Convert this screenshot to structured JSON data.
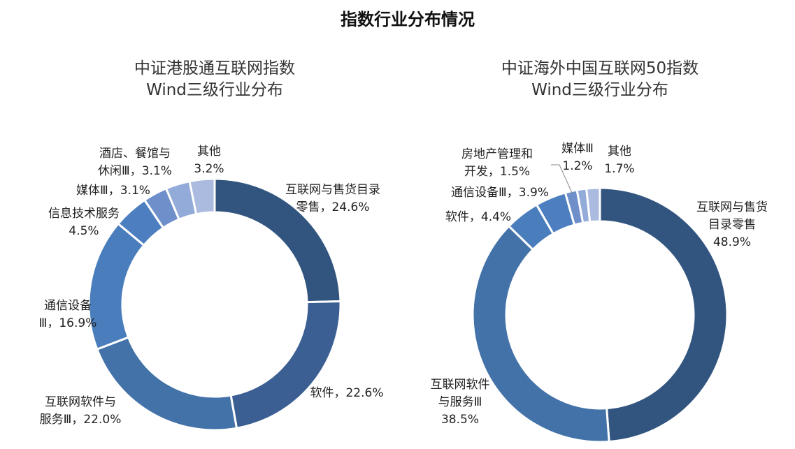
{
  "title": "指数行业分布情况",
  "colors": [
    "#32557f",
    "#3b5f93",
    "#4272a8",
    "#4a7dbc",
    "#4d7fc0",
    "#6f8fcb",
    "#93abd8",
    "#aabbdf"
  ],
  "chart_data": [
    {
      "type": "pie",
      "donut": true,
      "title": [
        "中证港股通互联网指数",
        "Wind三级行业分布"
      ],
      "slices": [
        {
          "name": "互联网与售货目录零售",
          "value": 24.6,
          "label": [
            "互联网与售货目录",
            "零售，24.6%"
          ]
        },
        {
          "name": "软件",
          "value": 22.6,
          "label": [
            "软件，22.6%"
          ]
        },
        {
          "name": "互联网软件与服务Ⅲ",
          "value": 22.0,
          "label": [
            "互联网软件与",
            "服务Ⅲ，22.0%"
          ]
        },
        {
          "name": "通信设备Ⅲ",
          "value": 16.9,
          "label": [
            "通信设备",
            "Ⅲ，16.9%"
          ]
        },
        {
          "name": "信息技术服务",
          "value": 4.5,
          "label": [
            "信息技术服务",
            "4.5%"
          ]
        },
        {
          "name": "媒体Ⅲ",
          "value": 3.1,
          "label": [
            "媒体Ⅲ，3.1%"
          ]
        },
        {
          "name": "酒店、餐馆与休闲Ⅲ",
          "value": 3.1,
          "label": [
            "酒店、餐馆与",
            "休闲Ⅲ，3.1%"
          ]
        },
        {
          "name": "其他",
          "value": 3.2,
          "label": [
            "其他",
            "3.2%"
          ]
        }
      ]
    },
    {
      "type": "pie",
      "donut": true,
      "title": [
        "中证海外中国互联网50指数",
        "Wind三级行业分布"
      ],
      "slices": [
        {
          "name": "互联网与售货目录零售",
          "value": 48.9,
          "label": [
            "互联网与售货",
            "目录零售",
            "48.9%"
          ]
        },
        {
          "name": "互联网软件与服务Ⅲ",
          "value": 38.5,
          "label": [
            "互联网软件",
            "与服务Ⅲ",
            "38.5%"
          ]
        },
        {
          "name": "软件",
          "value": 4.4,
          "label": [
            "软件，4.4%"
          ]
        },
        {
          "name": "通信设备Ⅲ",
          "value": 3.9,
          "label": [
            "通信设备Ⅲ，3.9%"
          ]
        },
        {
          "name": "房地产管理和开发",
          "value": 1.5,
          "label": [
            "房地产管理和",
            "开发，1.5%"
          ]
        },
        {
          "name": "媒体Ⅲ",
          "value": 1.2,
          "label": [
            "媒体Ⅲ",
            "1.2%"
          ]
        },
        {
          "name": "其他",
          "value": 1.7,
          "label": [
            "其他",
            "1.7%"
          ]
        }
      ]
    }
  ]
}
